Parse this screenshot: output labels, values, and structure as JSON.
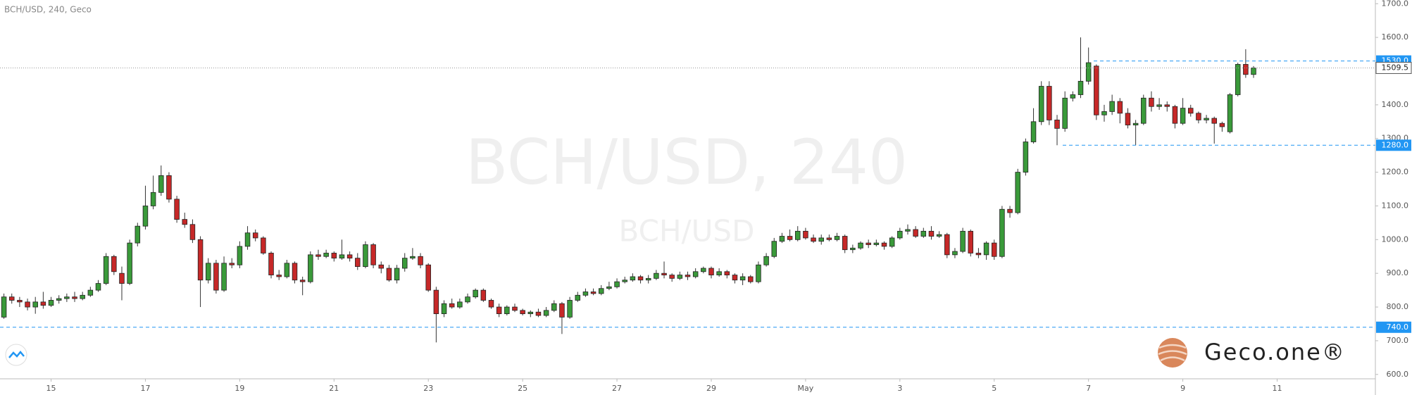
{
  "chart_data": {
    "type": "candlestick",
    "title": "BCH/USD, 240, Geco",
    "watermark": "BCH/USD, 240",
    "watermark_sub": "BCH/USD",
    "logo": "Geco.one®",
    "up_color": "#3a9a3a",
    "down_color": "#c62828",
    "categories": [
      null,
      null,
      null,
      null,
      null,
      null,
      "15",
      null,
      null,
      null,
      null,
      null,
      null,
      null,
      null,
      null,
      null,
      null,
      "17",
      null,
      null,
      null,
      null,
      null,
      null,
      null,
      null,
      null,
      null,
      null,
      "19",
      null,
      null,
      null,
      null,
      null,
      null,
      null,
      null,
      null,
      null,
      null,
      "21",
      null,
      null,
      null,
      null,
      null,
      null,
      null,
      null,
      null,
      null,
      null,
      "23",
      null,
      null,
      null,
      null,
      null,
      null,
      null,
      null,
      null,
      null,
      null,
      "25",
      null,
      null,
      null,
      null,
      null,
      null,
      null,
      null,
      null,
      null,
      null,
      "27",
      null,
      null,
      null,
      null,
      null,
      null,
      null,
      null,
      null,
      null,
      null,
      "29",
      null,
      null,
      null,
      null,
      null,
      null,
      null,
      null,
      null,
      null,
      null,
      "May",
      null,
      null,
      null,
      null,
      null,
      null,
      null,
      null,
      null,
      null,
      null,
      "3",
      null,
      null,
      null,
      null,
      null,
      null,
      null,
      null,
      null,
      null,
      null,
      "5",
      null,
      null,
      null,
      null,
      null,
      null,
      null,
      null,
      null,
      null,
      null,
      "7",
      null,
      null,
      null,
      null,
      null,
      null,
      null,
      null,
      null,
      null,
      null,
      "9",
      null,
      null,
      null,
      null,
      null,
      null,
      null,
      null,
      null,
      null,
      null,
      "11",
      null,
      null,
      null,
      null,
      null,
      null,
      null,
      null,
      null,
      null,
      null,
      null
    ],
    "open": [
      770,
      830,
      820,
      815,
      800,
      815,
      805,
      820,
      825,
      830,
      825,
      835,
      850,
      870,
      950,
      900,
      870,
      990,
      1040,
      1100,
      1140,
      1190,
      1120,
      1060,
      1045,
      1000,
      880,
      930,
      850,
      930,
      925,
      980,
      1020,
      1005,
      960,
      895,
      890,
      930,
      880,
      875,
      955,
      950,
      960,
      945,
      955,
      945,
      920,
      985,
      925,
      915,
      880,
      915,
      945,
      950,
      925,
      850,
      780,
      810,
      800,
      815,
      830,
      850,
      820,
      800,
      780,
      800,
      790,
      780,
      785,
      775,
      790,
      810,
      770,
      820,
      835,
      845,
      840,
      855,
      860,
      875,
      880,
      890,
      880,
      885,
      900,
      895,
      885,
      895,
      890,
      905,
      915,
      895,
      905,
      895,
      880,
      890,
      875,
      925,
      950,
      995,
      1010,
      1000,
      1025,
      1005,
      995,
      1005,
      1000,
      1010,
      970,
      975,
      990,
      985,
      990,
      980,
      1005,
      1025,
      1030,
      1010,
      1025,
      1010,
      1015,
      955,
      965,
      1025,
      960,
      955,
      990,
      950,
      1090,
      1080,
      1200,
      1290,
      1350,
      1455,
      1355,
      1330,
      1420,
      1430,
      1470,
      1515,
      1370,
      1380,
      1410,
      1375,
      1340,
      1345,
      1420,
      1395,
      1400,
      1395,
      1345,
      1390,
      1375,
      1355,
      1360,
      1345,
      1320,
      1430,
      1520,
      1490,
      null,
      null,
      null,
      null,
      null,
      null,
      null,
      null,
      null,
      null,
      null,
      null,
      null,
      null,
      null
    ],
    "high": [
      840,
      840,
      830,
      825,
      830,
      845,
      830,
      835,
      840,
      845,
      845,
      860,
      880,
      960,
      955,
      920,
      1000,
      1050,
      1160,
      1190,
      1220,
      1200,
      1130,
      1080,
      1060,
      1010,
      945,
      940,
      950,
      945,
      995,
      1040,
      1030,
      1010,
      965,
      910,
      940,
      935,
      890,
      965,
      970,
      970,
      965,
      1000,
      965,
      960,
      995,
      990,
      935,
      925,
      925,
      960,
      975,
      960,
      930,
      860,
      820,
      825,
      825,
      840,
      855,
      855,
      825,
      810,
      805,
      810,
      795,
      790,
      795,
      800,
      820,
      815,
      830,
      845,
      855,
      855,
      865,
      875,
      885,
      890,
      900,
      895,
      895,
      910,
      935,
      900,
      905,
      905,
      915,
      920,
      920,
      915,
      910,
      900,
      900,
      895,
      935,
      960,
      1005,
      1020,
      1030,
      1040,
      1035,
      1015,
      1015,
      1015,
      1020,
      1015,
      985,
      995,
      1000,
      1000,
      995,
      1010,
      1035,
      1045,
      1040,
      1035,
      1040,
      1025,
      1020,
      975,
      1035,
      1030,
      975,
      995,
      1000,
      1100,
      1100,
      1210,
      1300,
      1390,
      1470,
      1470,
      1370,
      1440,
      1440,
      1600,
      1570,
      1520,
      1400,
      1430,
      1420,
      1390,
      1355,
      1430,
      1440,
      1420,
      1410,
      1400,
      1420,
      1400,
      1380,
      1370,
      1365,
      1350,
      1435,
      1525,
      1565,
      1515,
      null,
      null,
      null,
      null,
      null,
      null,
      null,
      null,
      null,
      null,
      null,
      null,
      null,
      null,
      null
    ],
    "low": [
      765,
      810,
      800,
      790,
      780,
      795,
      800,
      810,
      815,
      815,
      820,
      830,
      845,
      865,
      895,
      820,
      865,
      980,
      1030,
      1090,
      1130,
      1110,
      1050,
      1035,
      990,
      800,
      870,
      840,
      845,
      915,
      915,
      970,
      995,
      955,
      885,
      880,
      885,
      870,
      835,
      870,
      940,
      945,
      935,
      940,
      935,
      910,
      915,
      915,
      900,
      875,
      870,
      905,
      940,
      915,
      845,
      695,
      770,
      795,
      795,
      810,
      825,
      815,
      795,
      770,
      775,
      785,
      775,
      770,
      770,
      770,
      785,
      720,
      765,
      815,
      830,
      835,
      835,
      850,
      855,
      870,
      875,
      870,
      870,
      880,
      885,
      875,
      880,
      880,
      885,
      900,
      885,
      890,
      885,
      870,
      865,
      870,
      870,
      920,
      945,
      990,
      995,
      995,
      1000,
      990,
      985,
      995,
      995,
      960,
      960,
      970,
      975,
      980,
      970,
      975,
      1000,
      1015,
      1005,
      1005,
      1000,
      1005,
      945,
      945,
      960,
      950,
      945,
      940,
      940,
      945,
      1065,
      1075,
      1190,
      1285,
      1340,
      1340,
      1280,
      1320,
      1410,
      1420,
      1460,
      1355,
      1350,
      1370,
      1345,
      1330,
      1280,
      1340,
      1380,
      1385,
      1380,
      1330,
      1340,
      1365,
      1345,
      1345,
      1285,
      1320,
      1315,
      1425,
      1480,
      1480,
      null,
      null,
      null,
      null,
      null,
      null,
      null,
      null,
      null,
      null,
      null,
      null,
      null,
      null,
      null
    ],
    "close": [
      830,
      820,
      815,
      800,
      815,
      805,
      820,
      825,
      830,
      825,
      835,
      850,
      870,
      950,
      905,
      870,
      990,
      1040,
      1100,
      1140,
      1190,
      1120,
      1060,
      1045,
      1000,
      880,
      930,
      850,
      930,
      925,
      980,
      1020,
      1005,
      960,
      895,
      890,
      930,
      880,
      875,
      955,
      950,
      960,
      945,
      955,
      945,
      920,
      985,
      925,
      915,
      880,
      915,
      945,
      950,
      925,
      850,
      780,
      810,
      800,
      815,
      830,
      850,
      820,
      800,
      780,
      800,
      790,
      780,
      785,
      775,
      790,
      810,
      770,
      820,
      835,
      845,
      840,
      855,
      860,
      875,
      880,
      890,
      880,
      885,
      900,
      895,
      885,
      895,
      890,
      905,
      915,
      895,
      905,
      895,
      880,
      890,
      875,
      925,
      950,
      995,
      1010,
      1000,
      1025,
      1005,
      995,
      1005,
      1000,
      1010,
      970,
      975,
      990,
      985,
      990,
      980,
      1005,
      1025,
      1030,
      1010,
      1025,
      1010,
      1015,
      955,
      965,
      1025,
      960,
      955,
      990,
      950,
      1090,
      1080,
      1200,
      1290,
      1350,
      1455,
      1355,
      1330,
      1420,
      1430,
      1470,
      1525,
      1370,
      1380,
      1410,
      1375,
      1340,
      1345,
      1420,
      1395,
      1400,
      1395,
      1345,
      1390,
      1375,
      1355,
      1360,
      1345,
      1335,
      1430,
      1520,
      1490,
      1509.5,
      null,
      null,
      null,
      null,
      null,
      null,
      null,
      null,
      null,
      null,
      null,
      null,
      null,
      null,
      null
    ],
    "ylim": [
      587,
      1711
    ],
    "yticks": [
      {
        "value": 600,
        "label": "600.0"
      },
      {
        "value": 700,
        "label": "700.0"
      },
      {
        "value": 800,
        "label": "800.0"
      },
      {
        "value": 900,
        "label": "900.0"
      },
      {
        "value": 1000,
        "label": "1000.0"
      },
      {
        "value": 1100,
        "label": "1100.0"
      },
      {
        "value": 1200,
        "label": "1200.0"
      },
      {
        "value": 1300,
        "label": "1300.0"
      },
      {
        "value": 1400,
        "label": "1400.0"
      },
      {
        "value": 1500,
        "label": "1500.0"
      },
      {
        "value": 1600,
        "label": "1600.0"
      },
      {
        "value": 1700,
        "label": "1700.0"
      }
    ],
    "levels": [
      {
        "value": 1530,
        "label": "1530.0"
      },
      {
        "value": 1280,
        "label": "1280.0"
      },
      {
        "value": 740,
        "label": "740.0"
      }
    ],
    "last_price": {
      "value": 1509.5,
      "label": "1509.5"
    }
  }
}
